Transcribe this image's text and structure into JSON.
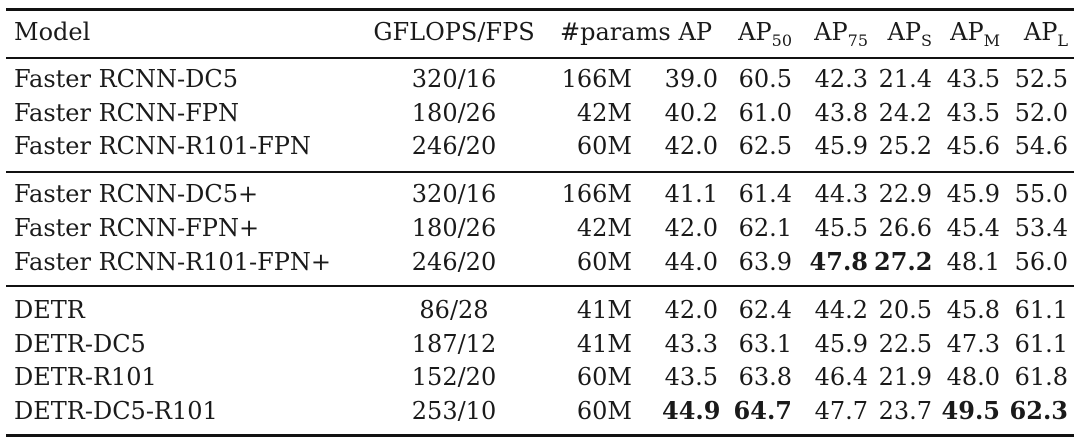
{
  "header": {
    "model": "Model",
    "gflops": "GFLOPS/FPS",
    "params": "#params",
    "ap": "AP",
    "ap_base": "AP",
    "sub50": "50",
    "sub75": "75",
    "subS": "S",
    "subM": "M",
    "subL": "L"
  },
  "rows": [
    {
      "model": "Faster RCNN-DC5",
      "gflops": "320/16",
      "params": "166M",
      "ap": "39.0",
      "ap50": "60.5",
      "ap75": "42.3",
      "aps": "21.4",
      "apm": "43.5",
      "apl": "52.5"
    },
    {
      "model": "Faster RCNN-FPN",
      "gflops": "180/26",
      "params": "42M",
      "ap": "40.2",
      "ap50": "61.0",
      "ap75": "43.8",
      "aps": "24.2",
      "apm": "43.5",
      "apl": "52.0"
    },
    {
      "model": "Faster RCNN-R101-FPN",
      "gflops": "246/20",
      "params": "60M",
      "ap": "42.0",
      "ap50": "62.5",
      "ap75": "45.9",
      "aps": "25.2",
      "apm": "45.6",
      "apl": "54.6"
    },
    {
      "model": "Faster RCNN-DC5+",
      "gflops": "320/16",
      "params": "166M",
      "ap": "41.1",
      "ap50": "61.4",
      "ap75": "44.3",
      "aps": "22.9",
      "apm": "45.9",
      "apl": "55.0"
    },
    {
      "model": "Faster RCNN-FPN+",
      "gflops": "180/26",
      "params": "42M",
      "ap": "42.0",
      "ap50": "62.1",
      "ap75": "45.5",
      "aps": "26.6",
      "apm": "45.4",
      "apl": "53.4"
    },
    {
      "model": "Faster RCNN-R101-FPN+",
      "gflops": "246/20",
      "params": "60M",
      "ap": "44.0",
      "ap50": "63.9",
      "ap75": "47.8",
      "aps": "27.2",
      "apm": "48.1",
      "apl": "56.0"
    },
    {
      "model": "DETR",
      "gflops": "86/28",
      "params": "41M",
      "ap": "42.0",
      "ap50": "62.4",
      "ap75": "44.2",
      "aps": "20.5",
      "apm": "45.8",
      "apl": "61.1"
    },
    {
      "model": "DETR-DC5",
      "gflops": "187/12",
      "params": "41M",
      "ap": "43.3",
      "ap50": "63.1",
      "ap75": "45.9",
      "aps": "22.5",
      "apm": "47.3",
      "apl": "61.1"
    },
    {
      "model": "DETR-R101",
      "gflops": "152/20",
      "params": "60M",
      "ap": "43.5",
      "ap50": "63.8",
      "ap75": "46.4",
      "aps": "21.9",
      "apm": "48.0",
      "apl": "61.8"
    },
    {
      "model": "DETR-DC5-R101",
      "gflops": "253/10",
      "params": "60M",
      "ap": "44.9",
      "ap50": "64.7",
      "ap75": "47.7",
      "aps": "23.7",
      "apm": "49.5",
      "apl": "62.3"
    }
  ]
}
